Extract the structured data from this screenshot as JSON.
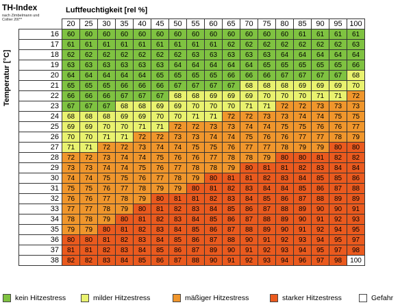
{
  "header": {
    "title": "TH-Index",
    "subtitle": "nach Zimbelmann und Collier 2009",
    "humidity_label": "Luftfeuchtigkeit [rel %]",
    "temperature_label": "Temperatur [°C]"
  },
  "colors": {
    "kein": "#7fc241",
    "mild": "#e9f26f",
    "maessig": "#f0962c",
    "stark": "#ea5a1e",
    "gefahr": "#ffffff"
  },
  "legend": [
    {
      "label": "kein Hitzestress",
      "key": "kein"
    },
    {
      "label": "milder Hitzestress",
      "key": "mild"
    },
    {
      "label": "mäßiger Hitzestress",
      "key": "maessig"
    },
    {
      "label": "starker Hitzestress",
      "key": "stark"
    },
    {
      "label": "Gefahr",
      "key": "gefahr"
    }
  ],
  "table": {
    "humidity": [
      20,
      25,
      30,
      35,
      40,
      45,
      50,
      55,
      60,
      65,
      70,
      75,
      80,
      85,
      90,
      95,
      100
    ],
    "temperature": [
      16,
      17,
      18,
      19,
      20,
      21,
      22,
      23,
      24,
      25,
      26,
      27,
      28,
      29,
      30,
      31,
      32,
      33,
      34,
      35,
      36,
      37,
      38
    ],
    "values": [
      [
        60,
        60,
        60,
        60,
        60,
        60,
        60,
        60,
        60,
        60,
        60,
        60,
        60,
        61,
        61,
        61,
        61
      ],
      [
        61,
        61,
        61,
        61,
        61,
        61,
        61,
        61,
        61,
        62,
        62,
        62,
        62,
        62,
        62,
        62,
        63
      ],
      [
        62,
        62,
        62,
        62,
        62,
        62,
        62,
        63,
        63,
        63,
        63,
        63,
        64,
        64,
        64,
        64,
        64
      ],
      [
        63,
        63,
        63,
        63,
        63,
        63,
        64,
        64,
        64,
        64,
        64,
        65,
        65,
        65,
        65,
        65,
        66
      ],
      [
        64,
        64,
        64,
        64,
        64,
        65,
        65,
        65,
        65,
        66,
        66,
        66,
        67,
        67,
        67,
        67,
        68
      ],
      [
        65,
        65,
        65,
        66,
        66,
        66,
        67,
        67,
        67,
        67,
        68,
        68,
        68,
        69,
        69,
        69,
        70
      ],
      [
        66,
        66,
        66,
        67,
        67,
        67,
        68,
        68,
        69,
        69,
        69,
        70,
        70,
        70,
        71,
        71,
        72
      ],
      [
        67,
        67,
        67,
        68,
        68,
        69,
        69,
        70,
        70,
        70,
        71,
        71,
        72,
        72,
        73,
        73,
        73
      ],
      [
        68,
        68,
        68,
        69,
        69,
        70,
        70,
        71,
        71,
        72,
        72,
        73,
        73,
        74,
        74,
        75,
        75
      ],
      [
        69,
        69,
        70,
        70,
        71,
        71,
        72,
        72,
        73,
        73,
        74,
        74,
        75,
        75,
        76,
        76,
        77
      ],
      [
        70,
        70,
        71,
        71,
        72,
        72,
        73,
        73,
        74,
        74,
        75,
        76,
        76,
        77,
        77,
        78,
        79
      ],
      [
        71,
        71,
        72,
        72,
        73,
        74,
        74,
        75,
        75,
        76,
        77,
        77,
        78,
        79,
        79,
        80,
        80
      ],
      [
        72,
        72,
        73,
        74,
        74,
        75,
        76,
        76,
        77,
        78,
        78,
        79,
        80,
        80,
        81,
        82,
        82
      ],
      [
        73,
        73,
        74,
        74,
        75,
        76,
        77,
        78,
        78,
        79,
        80,
        81,
        81,
        82,
        83,
        84,
        84
      ],
      [
        74,
        74,
        75,
        75,
        76,
        77,
        78,
        79,
        80,
        81,
        81,
        82,
        83,
        84,
        85,
        85,
        86
      ],
      [
        75,
        75,
        76,
        77,
        78,
        79,
        79,
        80,
        81,
        82,
        83,
        84,
        84,
        85,
        86,
        87,
        88
      ],
      [
        76,
        76,
        77,
        78,
        79,
        80,
        81,
        81,
        82,
        83,
        84,
        85,
        86,
        87,
        88,
        89,
        89
      ],
      [
        77,
        77,
        78,
        79,
        80,
        81,
        82,
        83,
        84,
        85,
        86,
        87,
        88,
        89,
        90,
        90,
        91
      ],
      [
        78,
        78,
        79,
        80,
        81,
        82,
        83,
        84,
        85,
        86,
        87,
        88,
        89,
        90,
        91,
        92,
        93
      ],
      [
        79,
        79,
        80,
        81,
        82,
        83,
        84,
        85,
        86,
        87,
        88,
        89,
        90,
        91,
        92,
        94,
        95
      ],
      [
        80,
        80,
        81,
        82,
        83,
        84,
        85,
        86,
        87,
        88,
        90,
        91,
        92,
        93,
        94,
        95,
        97
      ],
      [
        81,
        81,
        82,
        83,
        84,
        85,
        86,
        87,
        89,
        90,
        91,
        92,
        93,
        94,
        95,
        97,
        98
      ],
      [
        82,
        82,
        83,
        84,
        85,
        86,
        87,
        88,
        90,
        91,
        92,
        93,
        94,
        96,
        97,
        98,
        100
      ]
    ]
  }
}
